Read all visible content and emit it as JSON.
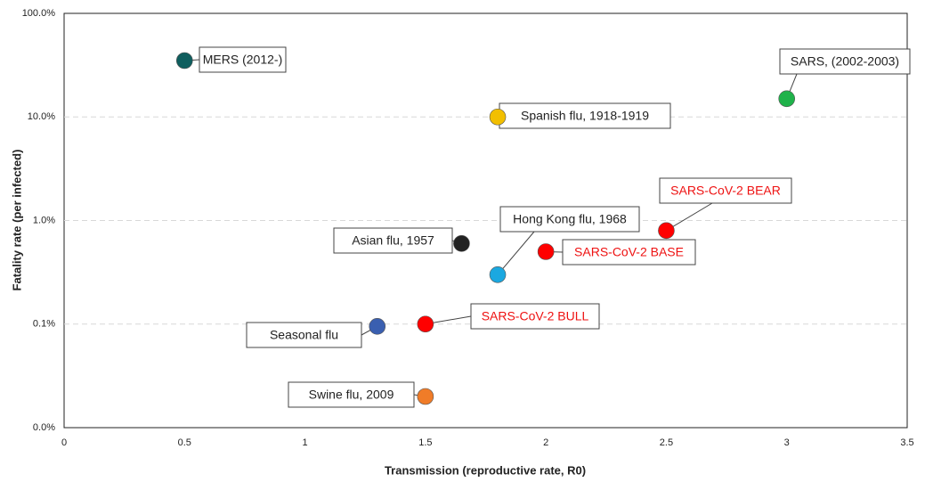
{
  "chart_data": {
    "type": "scatter",
    "xlabel": "Transmission (reproductive rate, R0)",
    "ylabel": "Fatality rate (per infected)",
    "xlim": [
      0,
      3.5
    ],
    "xticks": [
      0,
      0.5,
      1,
      1.5,
      2,
      2.5,
      3,
      3.5
    ],
    "ylim": [
      0.01,
      100
    ],
    "yscale": "log",
    "yticks": [
      {
        "value": 0.01,
        "label": "0.0%"
      },
      {
        "value": 0.1,
        "label": "0.1%"
      },
      {
        "value": 1,
        "label": "1.0%"
      },
      {
        "value": 10,
        "label": "10.0%"
      },
      {
        "value": 100,
        "label": "100.0%"
      }
    ],
    "grid": true,
    "series": [
      {
        "name": "MERS (2012-)",
        "color": "#0f5e5e",
        "label_color": "#222222",
        "x": [
          0.5
        ],
        "values": [
          35
        ]
      },
      {
        "name": "SARS, (2002-2003)",
        "color": "#1fb24a",
        "label_color": "#222222",
        "x": [
          3
        ],
        "values": [
          15
        ]
      },
      {
        "name": "Spanish flu, 1918-1919",
        "color": "#f2bf00",
        "label_color": "#222222",
        "x": [
          1.8
        ],
        "values": [
          10
        ]
      },
      {
        "name": "SARS-CoV-2 BEAR",
        "color": "#ff0000",
        "label_color": "#ee1111",
        "x": [
          2.5
        ],
        "values": [
          0.8
        ]
      },
      {
        "name": "Asian flu, 1957",
        "color": "#222222",
        "label_color": "#222222",
        "x": [
          1.65
        ],
        "values": [
          0.6
        ]
      },
      {
        "name": "Hong Kong flu, 1968",
        "color": "#1ba8e0",
        "label_color": "#222222",
        "x": [
          1.8
        ],
        "values": [
          0.3
        ]
      },
      {
        "name": "SARS-CoV-2 BASE",
        "color": "#ff0000",
        "label_color": "#ee1111",
        "x": [
          2
        ],
        "values": [
          0.5
        ]
      },
      {
        "name": "SARS-CoV-2 BULL",
        "color": "#ff0000",
        "label_color": "#ee1111",
        "x": [
          1.5
        ],
        "values": [
          0.1
        ]
      },
      {
        "name": "Seasonal flu",
        "color": "#3a5fb0",
        "label_color": "#222222",
        "x": [
          1.3
        ],
        "values": [
          0.095
        ]
      },
      {
        "name": "Swine flu, 2009",
        "color": "#f07c28",
        "label_color": "#222222",
        "x": [
          1.5
        ],
        "values": [
          0.02
        ]
      }
    ]
  }
}
